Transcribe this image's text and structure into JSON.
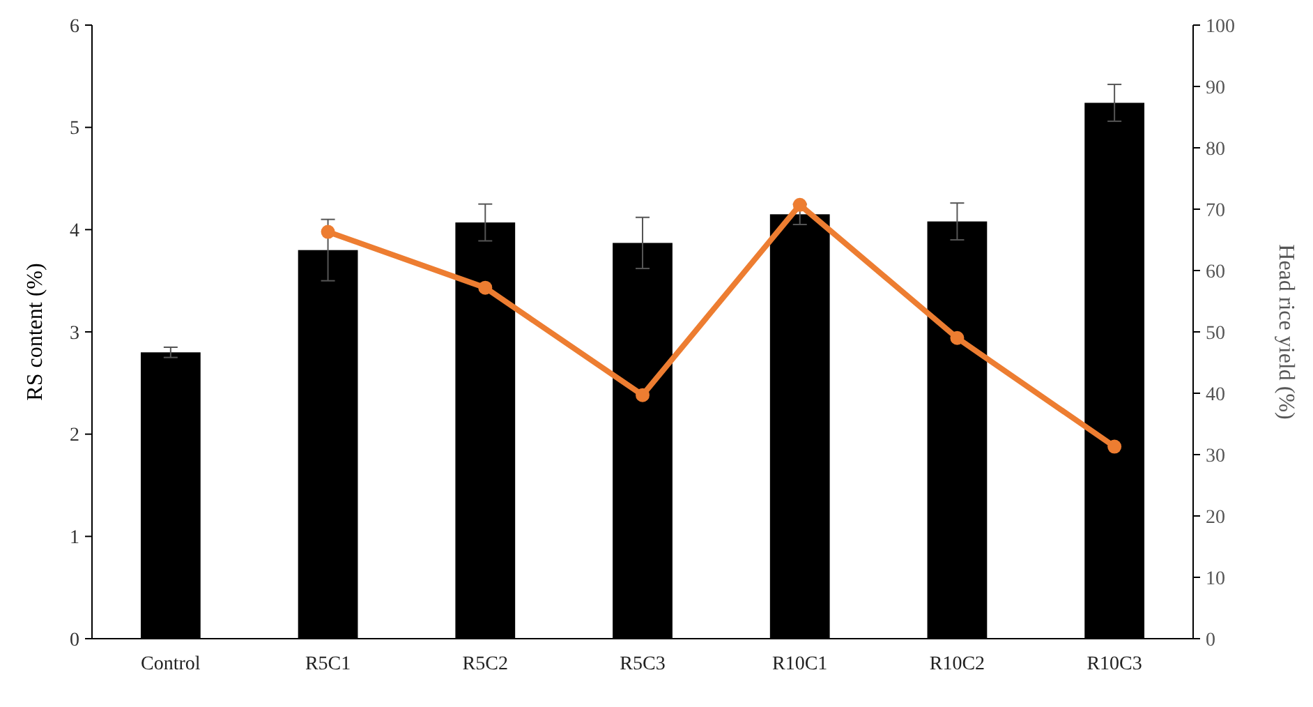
{
  "chart_data": {
    "type": "bar",
    "ylabel": "RS content (%)",
    "y2label": "Head rice yield (%)",
    "categories": [
      "Control",
      "R5C1",
      "R5C2",
      "R5C3",
      "R10C1",
      "R10C2",
      "R10C3"
    ],
    "series": [
      {
        "color": "#000000",
        "values": [
          2.8,
          3.8,
          4.07,
          3.87,
          4.15,
          4.08,
          5.24
        ],
        "errors": [
          0.05,
          0.3,
          0.18,
          0.25,
          0.1,
          0.18,
          0.18
        ]
      },
      {
        "type": "line",
        "axis": "y2",
        "color": "#ed7d31",
        "marker": "circle",
        "values": [
          null,
          66.3,
          57.2,
          39.7,
          70.7,
          49,
          31.3
        ]
      }
    ],
    "ylim": [
      0,
      6
    ],
    "yticks": [
      0,
      1,
      2,
      3,
      4,
      5,
      6
    ],
    "y2lim": [
      0,
      100
    ],
    "y2ticks": [
      0,
      10,
      20,
      30,
      40,
      50,
      60,
      70,
      80,
      90,
      100
    ],
    "grid": false
  }
}
